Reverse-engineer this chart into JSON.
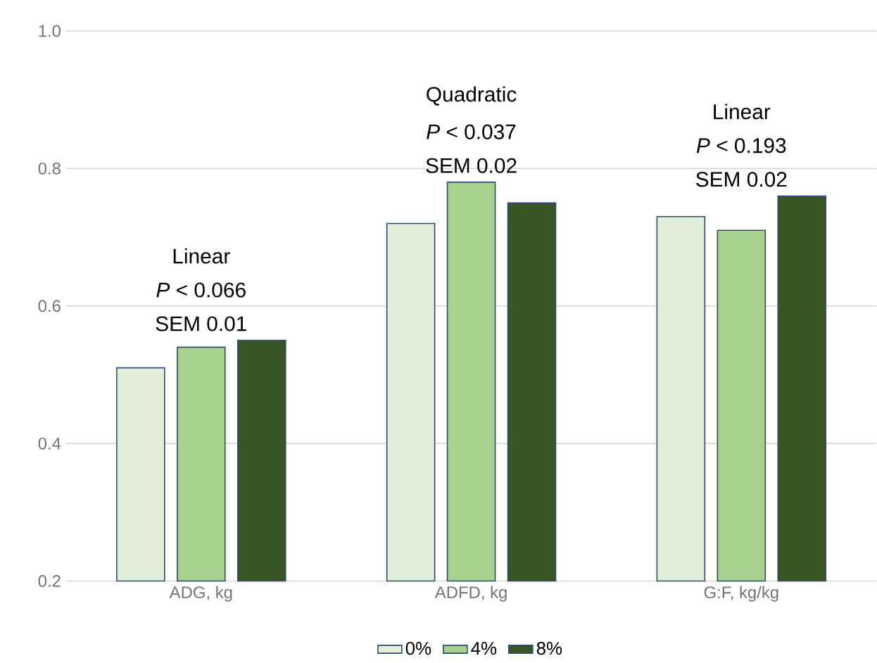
{
  "chart_data": {
    "type": "bar",
    "categories": [
      "ADG, kg",
      "ADFD, kg",
      "G:F, kg/kg"
    ],
    "series": [
      {
        "name": "0%",
        "color": "#e2efda",
        "values": [
          0.51,
          0.72,
          0.73
        ]
      },
      {
        "name": "4%",
        "color": "#a9d18e",
        "values": [
          0.54,
          0.78,
          0.71
        ]
      },
      {
        "name": "8%",
        "color": "#375623",
        "values": [
          0.55,
          0.75,
          0.76
        ]
      }
    ],
    "ylim": [
      0.2,
      1.0
    ],
    "yticks": [
      0.2,
      0.4,
      0.6,
      0.8,
      {
        "value": 1.0,
        "label": "1.0"
      }
    ],
    "grid": "y",
    "legend": "bottom",
    "annotations": [
      "Linear",
      "*P* < 0.066",
      "SEM 0.01",
      "Quadratic",
      "*P* < 0.037",
      "SEM 0.02",
      "Linear",
      "*P* < 0.193",
      "SEM 0.02"
    ]
  }
}
